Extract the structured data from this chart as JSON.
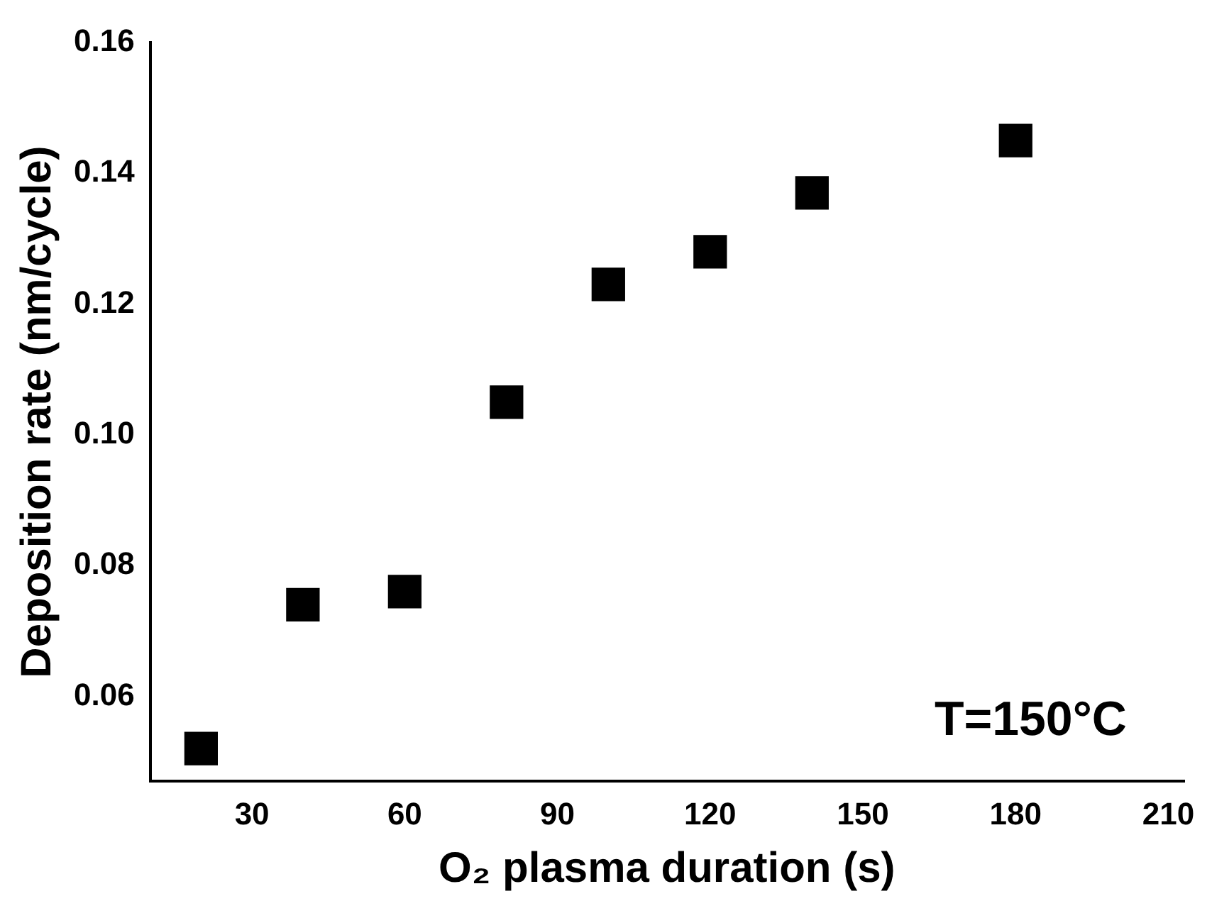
{
  "chart_data": {
    "type": "scatter",
    "xlabel": "O₂ plasma duration (s)",
    "ylabel": "Deposition rate (nm/cycle)",
    "x": [
      20,
      40,
      60,
      80,
      100,
      120,
      140,
      180
    ],
    "values": [
      0.052,
      0.074,
      0.076,
      0.105,
      0.123,
      0.128,
      0.137,
      0.145
    ],
    "color": "#000000",
    "marker": "square",
    "xlim": [
      10,
      213
    ],
    "xticks": [
      30,
      60,
      90,
      120,
      150,
      180,
      210
    ],
    "ylim": [
      0.047,
      0.16
    ],
    "yticks": [
      {
        "value": 0.06,
        "label": "0.06"
      },
      {
        "value": 0.08,
        "label": "0.08"
      },
      {
        "value": 0.1,
        "label": "0.10"
      },
      {
        "value": 0.12,
        "label": "0.12"
      },
      {
        "value": 0.14,
        "label": "0.14"
      },
      {
        "value": 0.16,
        "label": "0.16"
      }
    ],
    "grid": false,
    "legend": false,
    "annotations": [
      "T=150°C"
    ]
  }
}
